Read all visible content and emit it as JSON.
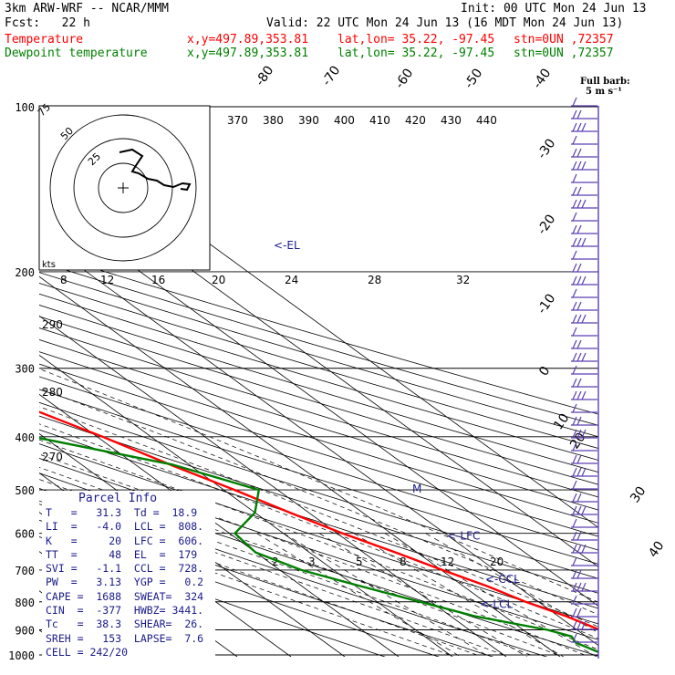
{
  "header": {
    "model": "3km ARW-WRF -- NCAR/MMM",
    "init": "Init: 00 UTC Mon 24 Jun 13",
    "fcst": "Fcst:   22 h",
    "valid": "Valid: 22 UTC Mon 24 Jun 13 (16 MDT Mon 24 Jun 13)",
    "rows": [
      {
        "label": "Temperature",
        "coords": "x,y=497.89,353.81",
        "latlon": "lat,lon= 35.22, -97.45",
        "stn": "stn=0UN ,72357",
        "color": "#ff0000"
      },
      {
        "label": "Dewpoint temperature",
        "coords": "x,y=497.89,353.81",
        "latlon": "lat,lon= 35.22, -97.45",
        "stn": "stn=0UN ,72357",
        "color": "#008000"
      }
    ]
  },
  "chart_data": {
    "type": "line",
    "pressure_levels": [
      100,
      200,
      300,
      400,
      500,
      600,
      700,
      800,
      900,
      1000
    ],
    "pressure_labels": [
      "100",
      "200",
      "300",
      "400",
      "500",
      "600",
      "700",
      "800",
      "900",
      "1000"
    ],
    "isotherm_labels": [
      "-80",
      "-70",
      "-60",
      "-50",
      "-40",
      "-30",
      "-20",
      "-10",
      "0",
      "10",
      "20",
      "30",
      "40"
    ],
    "theta_labels_top": [
      "370",
      "380",
      "390",
      "400",
      "410",
      "420",
      "430",
      "440"
    ],
    "theta_labels_left": [
      "290",
      "280",
      "270"
    ],
    "mixing_ratio_labels": [
      "8",
      "12",
      "16",
      "20",
      "24",
      "28",
      "32"
    ],
    "mixing_ratio_labels_low": [
      "2",
      "3",
      "5",
      "8",
      "12",
      "20"
    ],
    "markers": [
      {
        "label": "<-EL",
        "pressure": 179
      },
      {
        "label": "<-LFC",
        "pressure": 606
      },
      {
        "label": "<-CCL",
        "pressure": 728
      },
      {
        "label": "<-LCL",
        "pressure": 808
      },
      {
        "label": "M",
        "pressure": 498
      }
    ],
    "series": [
      {
        "name": "Temperature",
        "color": "#ff0000",
        "points": [
          [
            1000,
            31.3
          ],
          [
            950,
            27.5
          ],
          [
            925,
            26
          ],
          [
            900,
            24.2
          ],
          [
            850,
            21.5
          ],
          [
            800,
            17.6
          ],
          [
            750,
            14.5
          ],
          [
            700,
            10.2
          ],
          [
            650,
            6.0
          ],
          [
            600,
            1.0
          ],
          [
            550,
            -3.5
          ],
          [
            500,
            -8.0
          ],
          [
            450,
            -13.5
          ],
          [
            400,
            -19.0
          ],
          [
            350,
            -26.0
          ],
          [
            300,
            -34.0
          ],
          [
            250,
            -44.0
          ],
          [
            225,
            -50.0
          ],
          [
            200,
            -56.0
          ],
          [
            180,
            -58.5
          ],
          [
            170,
            -60.0
          ],
          [
            150,
            -62.0
          ],
          [
            130,
            -62.5
          ],
          [
            115,
            -63.5
          ],
          [
            100,
            -64.0
          ]
        ]
      },
      {
        "name": "Dewpoint temperature",
        "color": "#008000",
        "points": [
          [
            1000,
            18.9
          ],
          [
            950,
            16.5
          ],
          [
            925,
            17.3
          ],
          [
            900,
            14.5
          ],
          [
            850,
            4.5
          ],
          [
            800,
            -2.0
          ],
          [
            750,
            -9.0
          ],
          [
            700,
            -16.0
          ],
          [
            650,
            -20.0
          ],
          [
            600,
            -19.0
          ],
          [
            550,
            -10.0
          ],
          [
            500,
            -3.5
          ],
          [
            450,
            -13.0
          ],
          [
            400,
            -32.0
          ],
          [
            375,
            -30.0
          ],
          [
            350,
            -29.0
          ],
          [
            300,
            -36.0
          ],
          [
            250,
            -47.0
          ],
          [
            200,
            -56.0
          ],
          [
            170,
            -62.0
          ],
          [
            150,
            -65.0
          ],
          [
            130,
            -70.0
          ],
          [
            120,
            -70.0
          ],
          [
            100,
            -66.0
          ]
        ]
      }
    ],
    "parcel_info": {
      "title": "Parcel Info",
      "rows": [
        "T   =   31.3  Td =  18.9",
        "LI  =   -4.0  LCL =  808.",
        "K   =     20  LFC =  606.",
        "TT  =     48  EL  =  179",
        "SVI =   -1.1  CCL =  728.",
        "PW  =   3.13  YGP =   0.2",
        "CAPE =  1688  SWEAT=  324",
        "CIN  =  -377  HWBZ= 3441.",
        "Tc   =  38.3  SHEAR=  26.",
        "SREH =   153  LAPSE=  7.6",
        "CELL = 242/20"
      ]
    },
    "hodograph": {
      "ring_labels": [
        "75",
        "50",
        "25"
      ],
      "units": "kts"
    },
    "wind_legend": {
      "line1": "Full barb:",
      "line2": "5 m s⁻¹"
    }
  }
}
